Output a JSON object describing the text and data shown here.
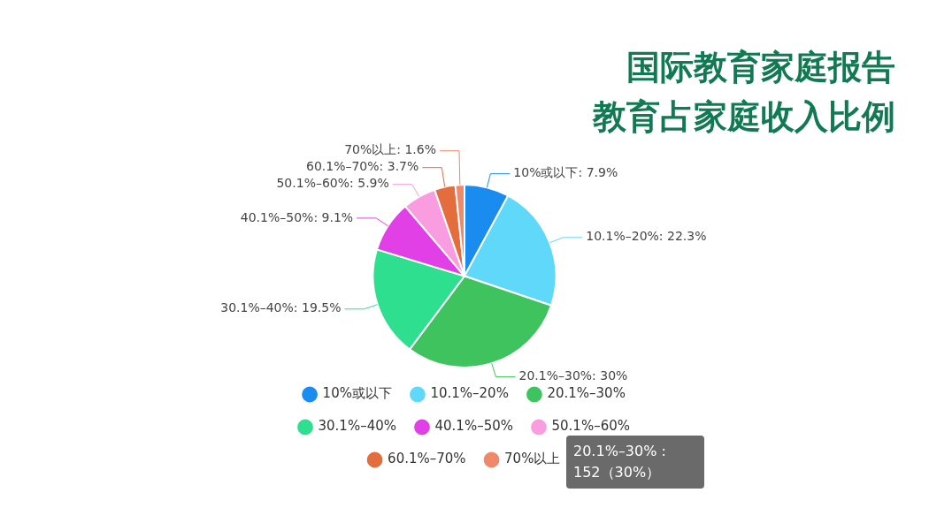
{
  "chart_data": {
    "type": "pie",
    "title": "国际教育家庭报告",
    "subtitle": "教育占家庭收入比例",
    "categories": [
      "10%或以下",
      "10.1%–20%",
      "20.1%–30%",
      "30.1%–40%",
      "40.1%–50%",
      "50.1%–60%",
      "60.1%–70%",
      "70%以上"
    ],
    "values": [
      7.9,
      22.3,
      30,
      19.5,
      9.1,
      5.9,
      3.7,
      1.6
    ],
    "colors": [
      "#1a8cf0",
      "#5fd8fa",
      "#3fc35f",
      "#2ddf8f",
      "#e040e6",
      "#f99ce0",
      "#e36d3c",
      "#f0886a"
    ],
    "value_labels": [
      "10%或以下: 7.9%",
      "10.1%–20%: 22.3%",
      "20.1%–30%: 30%",
      "30.1%–40%: 19.5%",
      "40.1%–50%: 9.1%",
      "50.1%–60%: 5.9%",
      "60.1%–70%: 3.7%",
      "70%以上: 1.6%"
    ],
    "legend": "bottom",
    "annotations": [
      "20.1%–30% : 152（30%）"
    ]
  }
}
